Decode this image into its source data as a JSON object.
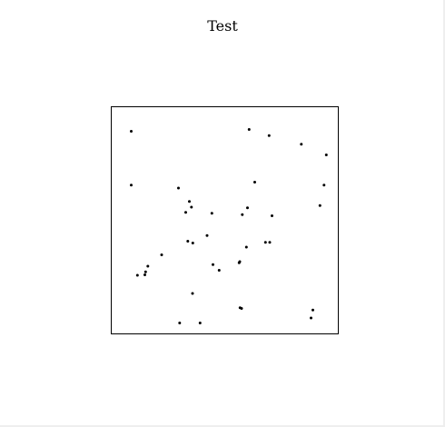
{
  "chart_data": {
    "type": "scatter",
    "title": "Test",
    "xlabel": "",
    "ylabel": "",
    "xlim": [
      0,
      1
    ],
    "ylim": [
      0,
      1
    ],
    "grid": false,
    "axes_visible": false,
    "point_color": "#000000",
    "points": [
      [
        0.088,
        0.892
      ],
      [
        0.607,
        0.9
      ],
      [
        0.695,
        0.873
      ],
      [
        0.837,
        0.835
      ],
      [
        0.947,
        0.788
      ],
      [
        0.088,
        0.655
      ],
      [
        0.632,
        0.668
      ],
      [
        0.937,
        0.655
      ],
      [
        0.296,
        0.642
      ],
      [
        0.344,
        0.583
      ],
      [
        0.353,
        0.558
      ],
      [
        0.328,
        0.535
      ],
      [
        0.443,
        0.531
      ],
      [
        0.6,
        0.555
      ],
      [
        0.577,
        0.525
      ],
      [
        0.708,
        0.52
      ],
      [
        0.919,
        0.565
      ],
      [
        0.422,
        0.433
      ],
      [
        0.337,
        0.408
      ],
      [
        0.359,
        0.4
      ],
      [
        0.595,
        0.382
      ],
      [
        0.679,
        0.403
      ],
      [
        0.698,
        0.403
      ],
      [
        0.222,
        0.348
      ],
      [
        0.161,
        0.298
      ],
      [
        0.151,
        0.273
      ],
      [
        0.448,
        0.305
      ],
      [
        0.475,
        0.28
      ],
      [
        0.563,
        0.313
      ],
      [
        0.566,
        0.318
      ],
      [
        0.115,
        0.258
      ],
      [
        0.148,
        0.26
      ],
      [
        0.358,
        0.178
      ],
      [
        0.567,
        0.115
      ],
      [
        0.574,
        0.112
      ],
      [
        0.888,
        0.105
      ],
      [
        0.88,
        0.07
      ],
      [
        0.301,
        0.048
      ],
      [
        0.391,
        0.048
      ]
    ]
  }
}
